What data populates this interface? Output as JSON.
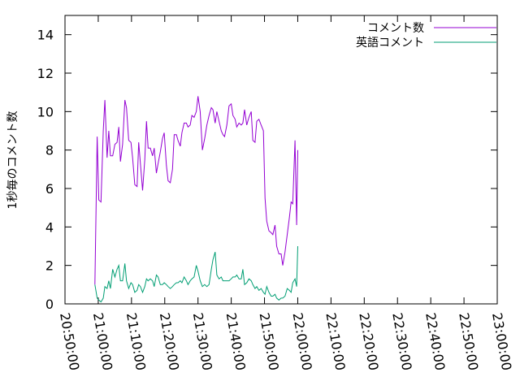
{
  "chart_data": {
    "type": "line",
    "title": "",
    "xlabel": "",
    "ylabel": "1秒毎のコメント数",
    "xlim": [
      "20:50:00",
      "23:00:00"
    ],
    "ylim": [
      0,
      15
    ],
    "x_ticks": [
      "20:50:00",
      "21:00:00",
      "21:10:00",
      "21:20:00",
      "21:30:00",
      "21:40:00",
      "21:50:00",
      "22:00:00",
      "22:10:00",
      "22:20:00",
      "22:30:00",
      "22:40:00",
      "22:50:00",
      "23:00:00"
    ],
    "y_ticks": [
      "0",
      "2",
      "4",
      "6",
      "8",
      "10",
      "12",
      "14"
    ],
    "grid": false,
    "legend_position": "top-right",
    "series": [
      {
        "name": "コメント数",
        "color": "#9400d3",
        "points": [
          [
            "20:59:00",
            1.0
          ],
          [
            "20:59:40",
            8.7
          ],
          [
            "21:00:10",
            5.4
          ],
          [
            "21:00:50",
            5.3
          ],
          [
            "21:01:30",
            9.0
          ],
          [
            "21:02:00",
            10.6
          ],
          [
            "21:02:40",
            7.6
          ],
          [
            "21:03:10",
            9.0
          ],
          [
            "21:03:40",
            7.7
          ],
          [
            "21:04:20",
            7.7
          ],
          [
            "21:05:00",
            8.3
          ],
          [
            "21:05:40",
            8.4
          ],
          [
            "21:06:10",
            9.2
          ],
          [
            "21:06:40",
            7.4
          ],
          [
            "21:07:20",
            8.3
          ],
          [
            "21:08:00",
            10.6
          ],
          [
            "21:08:30",
            10.2
          ],
          [
            "21:09:10",
            8.5
          ],
          [
            "21:09:50",
            8.4
          ],
          [
            "21:10:20",
            7.6
          ],
          [
            "21:11:00",
            6.2
          ],
          [
            "21:11:40",
            6.1
          ],
          [
            "21:12:10",
            8.4
          ],
          [
            "21:12:40",
            7.3
          ],
          [
            "21:13:20",
            5.9
          ],
          [
            "21:14:00",
            7.5
          ],
          [
            "21:14:30",
            9.5
          ],
          [
            "21:15:00",
            8.1
          ],
          [
            "21:15:40",
            8.1
          ],
          [
            "21:16:20",
            7.7
          ],
          [
            "21:16:50",
            8.1
          ],
          [
            "21:17:30",
            6.8
          ],
          [
            "21:18:00",
            7.3
          ],
          [
            "21:18:40",
            7.9
          ],
          [
            "21:19:20",
            8.6
          ],
          [
            "21:19:50",
            8.9
          ],
          [
            "21:20:30",
            7.2
          ],
          [
            "21:21:00",
            6.4
          ],
          [
            "21:21:40",
            6.3
          ],
          [
            "21:22:20",
            7.0
          ],
          [
            "21:22:50",
            8.8
          ],
          [
            "21:23:30",
            8.8
          ],
          [
            "21:24:00",
            8.5
          ],
          [
            "21:24:40",
            8.2
          ],
          [
            "21:25:10",
            8.9
          ],
          [
            "21:25:50",
            9.4
          ],
          [
            "21:26:30",
            9.4
          ],
          [
            "21:27:00",
            9.2
          ],
          [
            "21:27:40",
            9.3
          ],
          [
            "21:28:10",
            9.8
          ],
          [
            "21:28:50",
            9.7
          ],
          [
            "21:29:30",
            10.0
          ],
          [
            "21:30:00",
            10.8
          ],
          [
            "21:30:40",
            10.0
          ],
          [
            "21:31:20",
            8.0
          ],
          [
            "21:32:00",
            8.6
          ],
          [
            "21:32:40",
            9.3
          ],
          [
            "21:33:20",
            9.8
          ],
          [
            "21:34:00",
            10.2
          ],
          [
            "21:34:30",
            10.1
          ],
          [
            "21:35:10",
            9.4
          ],
          [
            "21:35:40",
            10.0
          ],
          [
            "21:36:20",
            9.5
          ],
          [
            "21:37:00",
            9.0
          ],
          [
            "21:37:30",
            8.8
          ],
          [
            "21:38:00",
            8.7
          ],
          [
            "21:38:40",
            9.3
          ],
          [
            "21:39:20",
            10.3
          ],
          [
            "21:40:00",
            10.4
          ],
          [
            "21:40:30",
            9.8
          ],
          [
            "21:41:10",
            9.6
          ],
          [
            "21:41:40",
            9.2
          ],
          [
            "21:42:20",
            9.4
          ],
          [
            "21:43:00",
            9.3
          ],
          [
            "21:43:30",
            9.4
          ],
          [
            "21:44:00",
            10.1
          ],
          [
            "21:44:40",
            9.3
          ],
          [
            "21:45:20",
            9.7
          ],
          [
            "21:46:00",
            10.0
          ],
          [
            "21:46:30",
            8.5
          ],
          [
            "21:47:10",
            8.4
          ],
          [
            "21:47:40",
            9.5
          ],
          [
            "21:48:20",
            9.6
          ],
          [
            "21:49:00",
            9.3
          ],
          [
            "21:49:40",
            9.0
          ],
          [
            "21:50:10",
            5.5
          ],
          [
            "21:50:40",
            4.3
          ],
          [
            "21:51:20",
            3.8
          ],
          [
            "21:52:00",
            3.7
          ],
          [
            "21:52:30",
            3.6
          ],
          [
            "21:53:10",
            4.1
          ],
          [
            "21:53:40",
            3.0
          ],
          [
            "21:54:20",
            2.6
          ],
          [
            "21:55:00",
            2.6
          ],
          [
            "21:55:30",
            2.0
          ],
          [
            "21:56:10",
            2.7
          ],
          [
            "21:56:50",
            3.6
          ],
          [
            "21:57:30",
            4.5
          ],
          [
            "21:58:00",
            5.3
          ],
          [
            "21:58:30",
            5.2
          ],
          [
            "21:59:10",
            8.5
          ],
          [
            "21:59:40",
            4.1
          ],
          [
            "22:00:00",
            8.0
          ]
        ]
      },
      {
        "name": "英語コメント",
        "color": "#009e73",
        "points": [
          [
            "20:59:00",
            1.0
          ],
          [
            "20:59:40",
            0.3
          ],
          [
            "21:00:10",
            0.2
          ],
          [
            "21:00:50",
            0.1
          ],
          [
            "21:01:30",
            0.3
          ],
          [
            "21:02:00",
            0.9
          ],
          [
            "21:02:40",
            0.8
          ],
          [
            "21:03:10",
            1.2
          ],
          [
            "21:03:40",
            0.8
          ],
          [
            "21:04:20",
            1.8
          ],
          [
            "21:05:00",
            1.4
          ],
          [
            "21:05:40",
            1.8
          ],
          [
            "21:06:10",
            2.0
          ],
          [
            "21:06:40",
            1.2
          ],
          [
            "21:07:20",
            1.2
          ],
          [
            "21:08:00",
            2.1
          ],
          [
            "21:08:30",
            1.2
          ],
          [
            "21:09:10",
            0.8
          ],
          [
            "21:09:50",
            1.1
          ],
          [
            "21:10:20",
            1.0
          ],
          [
            "21:11:00",
            0.6
          ],
          [
            "21:11:40",
            0.7
          ],
          [
            "21:12:10",
            1.0
          ],
          [
            "21:12:40",
            0.9
          ],
          [
            "21:13:20",
            0.6
          ],
          [
            "21:14:00",
            0.9
          ],
          [
            "21:14:30",
            1.3
          ],
          [
            "21:15:00",
            1.2
          ],
          [
            "21:15:40",
            1.3
          ],
          [
            "21:16:20",
            1.2
          ],
          [
            "21:16:50",
            0.9
          ],
          [
            "21:17:30",
            1.5
          ],
          [
            "21:18:00",
            1.4
          ],
          [
            "21:18:40",
            1.0
          ],
          [
            "21:19:20",
            1.0
          ],
          [
            "21:19:50",
            1.1
          ],
          [
            "21:20:30",
            1.0
          ],
          [
            "21:21:00",
            0.9
          ],
          [
            "21:21:40",
            0.8
          ],
          [
            "21:22:20",
            0.9
          ],
          [
            "21:22:50",
            1.0
          ],
          [
            "21:23:30",
            1.1
          ],
          [
            "21:24:00",
            1.1
          ],
          [
            "21:24:40",
            1.2
          ],
          [
            "21:25:10",
            1.1
          ],
          [
            "21:25:50",
            1.4
          ],
          [
            "21:26:30",
            1.2
          ],
          [
            "21:27:00",
            1.0
          ],
          [
            "21:27:40",
            1.2
          ],
          [
            "21:28:10",
            1.3
          ],
          [
            "21:28:50",
            1.4
          ],
          [
            "21:29:30",
            2.0
          ],
          [
            "21:30:00",
            1.7
          ],
          [
            "21:30:40",
            1.2
          ],
          [
            "21:31:20",
            0.9
          ],
          [
            "21:32:00",
            1.0
          ],
          [
            "21:32:40",
            0.9
          ],
          [
            "21:33:20",
            1.0
          ],
          [
            "21:34:00",
            1.8
          ],
          [
            "21:34:30",
            2.3
          ],
          [
            "21:35:10",
            2.7
          ],
          [
            "21:35:40",
            1.5
          ],
          [
            "21:36:20",
            1.3
          ],
          [
            "21:37:00",
            1.4
          ],
          [
            "21:37:30",
            1.2
          ],
          [
            "21:38:00",
            1.2
          ],
          [
            "21:38:40",
            1.2
          ],
          [
            "21:39:20",
            1.2
          ],
          [
            "21:40:00",
            1.3
          ],
          [
            "21:40:30",
            1.4
          ],
          [
            "21:41:10",
            1.4
          ],
          [
            "21:41:40",
            1.5
          ],
          [
            "21:42:20",
            1.3
          ],
          [
            "21:43:00",
            1.3
          ],
          [
            "21:43:30",
            1.8
          ],
          [
            "21:44:00",
            1.0
          ],
          [
            "21:44:40",
            1.1
          ],
          [
            "21:45:20",
            1.3
          ],
          [
            "21:46:00",
            1.2
          ],
          [
            "21:46:30",
            1.0
          ],
          [
            "21:47:10",
            0.8
          ],
          [
            "21:47:40",
            0.9
          ],
          [
            "21:48:20",
            0.7
          ],
          [
            "21:49:00",
            0.8
          ],
          [
            "21:49:40",
            0.6
          ],
          [
            "21:50:10",
            0.5
          ],
          [
            "21:50:40",
            0.9
          ],
          [
            "21:51:20",
            0.6
          ],
          [
            "21:52:00",
            0.4
          ],
          [
            "21:52:30",
            0.4
          ],
          [
            "21:53:10",
            0.5
          ],
          [
            "21:53:40",
            0.3
          ],
          [
            "21:54:20",
            0.2
          ],
          [
            "21:55:00",
            0.3
          ],
          [
            "21:55:30",
            0.3
          ],
          [
            "21:56:10",
            0.4
          ],
          [
            "21:56:50",
            0.8
          ],
          [
            "21:57:30",
            0.7
          ],
          [
            "21:58:00",
            0.6
          ],
          [
            "21:58:30",
            1.1
          ],
          [
            "21:59:10",
            1.3
          ],
          [
            "21:59:40",
            0.9
          ],
          [
            "22:00:00",
            3.0
          ]
        ]
      }
    ]
  }
}
